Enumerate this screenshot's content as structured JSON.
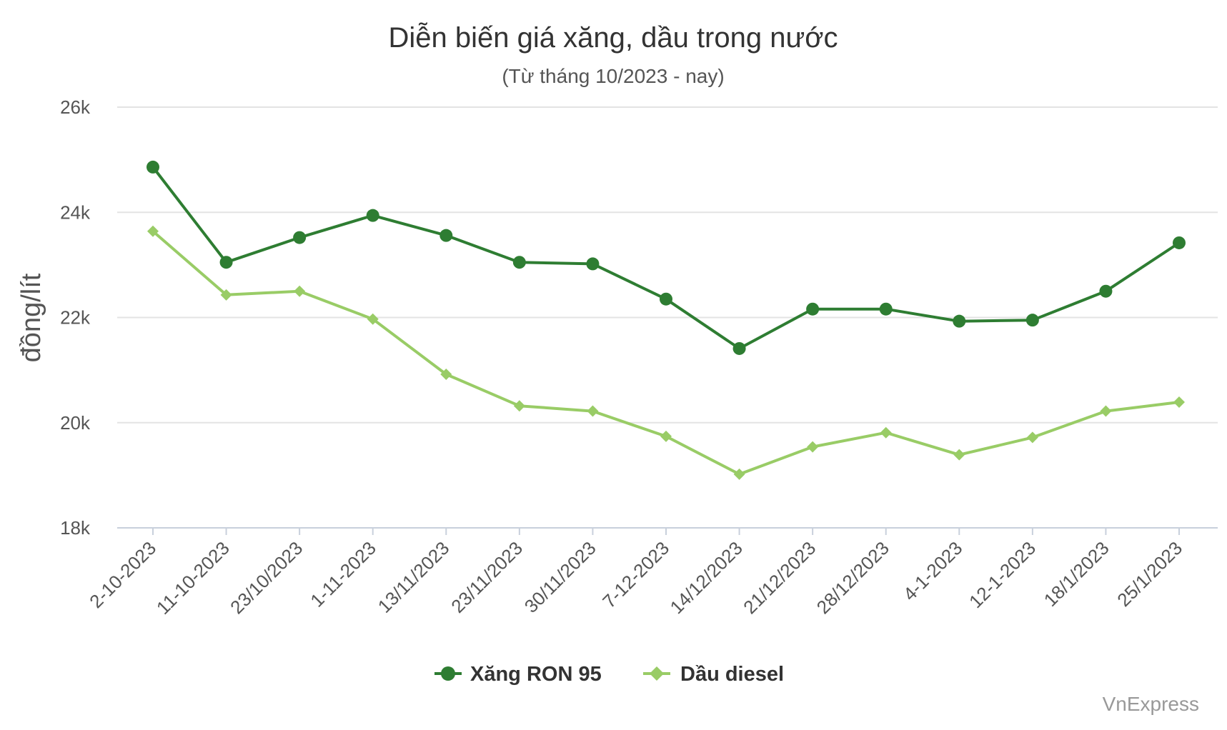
{
  "chart_data": {
    "type": "line",
    "title": "Diễn biến giá xăng, dầu trong nước",
    "subtitle": "(Từ tháng 10/2023 - nay)",
    "ylabel": "đồng/lít",
    "xlabel": "",
    "ylim": [
      18000,
      26000
    ],
    "y_ticks": [
      {
        "value": 18000,
        "label": "18k"
      },
      {
        "value": 20000,
        "label": "20k"
      },
      {
        "value": 22000,
        "label": "22k"
      },
      {
        "value": 24000,
        "label": "24k"
      },
      {
        "value": 26000,
        "label": "26k"
      }
    ],
    "categories": [
      "2-10-2023",
      "11-10-2023",
      "23/10/2023",
      "1-11-2023",
      "13/11/2023",
      "23/11/2023",
      "30/11/2023",
      "7-12-2023",
      "14/12/2023",
      "21/12/2023",
      "28/12/2023",
      "4-1-2023",
      "12-1-2023",
      "18/1/2023",
      "25/1/2023"
    ],
    "grid": true,
    "legend_position": "bottom",
    "series": [
      {
        "name": "Xăng RON 95",
        "color": "#2e7d32",
        "marker": "circle",
        "values": [
          24860,
          23050,
          23520,
          23940,
          23560,
          23050,
          23020,
          22350,
          21410,
          22160,
          22160,
          21930,
          21950,
          22500,
          23420
        ]
      },
      {
        "name": "Dầu diesel",
        "color": "#99cc66",
        "marker": "diamond",
        "values": [
          23640,
          22430,
          22500,
          21970,
          20920,
          20320,
          20220,
          19740,
          19020,
          19540,
          19810,
          19390,
          19720,
          20220,
          20390
        ]
      }
    ],
    "credit": "VnExpress"
  }
}
